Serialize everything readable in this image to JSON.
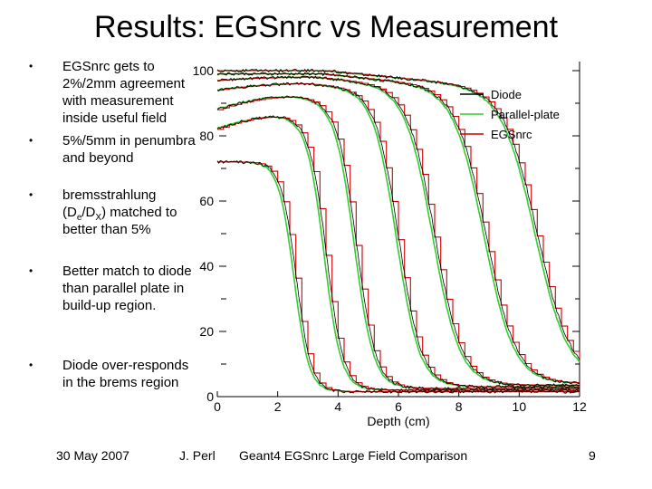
{
  "slide": {
    "title": "Results: EGSnrc vs Measurement",
    "bullets": [
      {
        "text": "EGSnrc gets to 2%/2mm agreement with measurement inside useful field"
      },
      {
        "text": "5%/5mm in penumbra and beyond"
      },
      {
        "pre": "bremsstrahlung (D",
        "sub1": "e",
        "mid": "/D",
        "sub2": "X",
        "post": ") matched to better than 5%"
      },
      {
        "text": "Better match to diode than parallel plate in build-up region."
      },
      {
        "text": "Diode over-responds in the brems region"
      }
    ],
    "footer": {
      "date": "30 May 2007",
      "author": "J. Perl",
      "caption": "Geant4 EGSnrc Large Field Comparison",
      "page": "9"
    }
  },
  "chart_data": {
    "type": "line",
    "title": "",
    "xlabel": "Depth (cm)",
    "ylabel": "",
    "xlim": [
      0,
      12
    ],
    "ylim": [
      0,
      100
    ],
    "xticks": [
      0,
      2,
      4,
      6,
      8,
      10,
      12
    ],
    "yticks": [
      0,
      20,
      40,
      60,
      80,
      100
    ],
    "legend_position": "top-right",
    "legend": [
      {
        "name": "Diode",
        "color": "#000000"
      },
      {
        "name": "Parallel-plate",
        "color": "#33cc33"
      },
      {
        "name": "EGSnrc",
        "color": "#cc0000"
      }
    ],
    "curves": [
      {
        "start": 72,
        "peak_x": 1.7,
        "peak": 72,
        "half": 2.6,
        "width": 0.25,
        "tail": 1.5
      },
      {
        "start": 82,
        "peak_x": 2.2,
        "peak": 86,
        "half": 3.6,
        "width": 0.28,
        "tail": 2.0
      },
      {
        "start": 88,
        "peak_x": 2.6,
        "peak": 92,
        "half": 4.6,
        "width": 0.32,
        "tail": 2.5
      },
      {
        "start": 94,
        "peak_x": 3.0,
        "peak": 96,
        "half": 6.0,
        "width": 0.38,
        "tail": 3.0
      },
      {
        "start": 97,
        "peak_x": 3.2,
        "peak": 98,
        "half": 7.2,
        "width": 0.45,
        "tail": 3.5
      },
      {
        "start": 99,
        "peak_x": 3.4,
        "peak": 99,
        "half": 8.9,
        "width": 0.5,
        "tail": 4.0
      },
      {
        "start": 100,
        "peak_x": 3.5,
        "peak": 100,
        "half": 10.6,
        "width": 0.55,
        "tail": 5.0
      }
    ]
  }
}
